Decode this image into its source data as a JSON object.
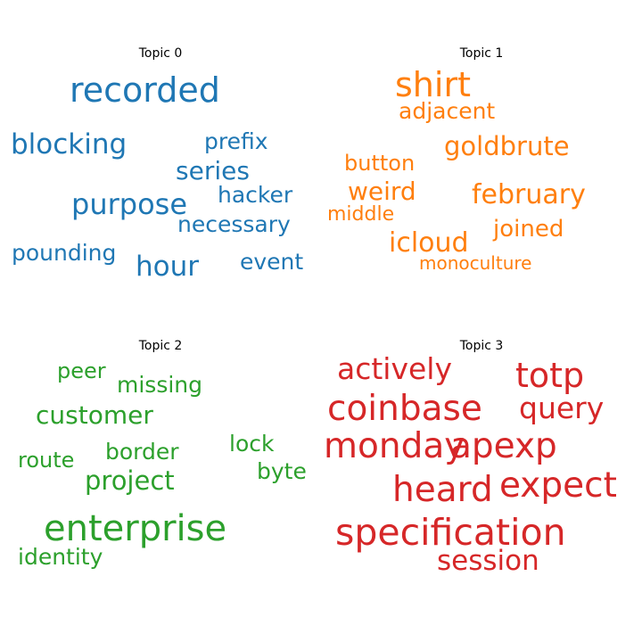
{
  "chart_data": {
    "type": "wordcloud",
    "panels": [
      {
        "title": "Topic 0",
        "color": "#1f77b4",
        "words": [
          "recorded",
          "blocking",
          "prefix",
          "series",
          "purpose",
          "hacker",
          "necessary",
          "pounding",
          "hour",
          "event"
        ]
      },
      {
        "title": "Topic 1",
        "color": "#ff7f0e",
        "words": [
          "shirt",
          "adjacent",
          "goldbrute",
          "button",
          "weird",
          "february",
          "middle",
          "joined",
          "icloud",
          "monoculture"
        ]
      },
      {
        "title": "Topic 2",
        "color": "#2ca02c",
        "words": [
          "peer",
          "missing",
          "customer",
          "lock",
          "route",
          "border",
          "byte",
          "project",
          "enterprise",
          "identity"
        ]
      },
      {
        "title": "Topic 3",
        "color": "#d62728",
        "words": [
          "actively",
          "totp",
          "coinbase",
          "query",
          "monday",
          "apexp",
          "heard",
          "expect",
          "specification",
          "session"
        ]
      }
    ]
  }
}
